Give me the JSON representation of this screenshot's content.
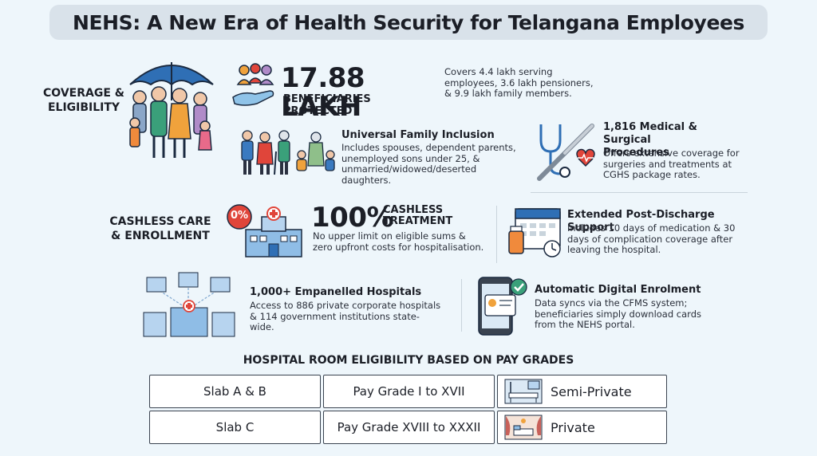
{
  "title": "NEHS: A New Era of Health Security for Telangana Employees",
  "sections": {
    "coverage": "COVERAGE & ELIGIBILITY",
    "cashless": "CASHLESS CARE & ENROLLMENT"
  },
  "beneficiaries": {
    "number": "17.88 LAKH",
    "label": "BENEFICIARIES PROTECTED",
    "desc": "Covers 4.4 lakh serving employees, 3.6 lakh pensioners, & 9.9 lakh family members."
  },
  "family": {
    "heading": "Universal Family Inclusion",
    "desc": "Includes spouses, dependent parents, unemployed sons under 25, & unmarried/widowed/deserted daughters."
  },
  "procedures": {
    "heading": "1,816 Medical & Surgical Procedures",
    "desc": "Offers extensive coverage for surgeries and treatments at CGHS package rates."
  },
  "cashless_card": {
    "number": "100%",
    "label": "CASHLESS TREATMENT",
    "badge": "0%",
    "desc": "No upper limit on eligible sums & zero upfront costs for hospitalisation."
  },
  "post_discharge": {
    "heading": "Extended Post-Discharge Support",
    "desc": "Includes 10 days of medication & 30 days of complication coverage after leaving the hospital."
  },
  "hospitals": {
    "heading": "1,000+ Empanelled Hospitals",
    "desc": "Access to 886 private corporate hospitals & 114 government institutions state-wide."
  },
  "enrolment": {
    "heading": "Automatic Digital Enrolment",
    "desc": "Data syncs via the CFMS system; beneficiaries simply download cards from the NEHS portal."
  },
  "room_table": {
    "title": "HOSPITAL ROOM ELIGIBILITY BASED ON PAY GRADES",
    "rows": [
      {
        "slab": "Slab A & B",
        "grade": "Pay Grade I to XVII",
        "room": "Semi-Private",
        "icon": "hospital-bed-icon"
      },
      {
        "slab": "Slab C",
        "grade": "Pay Grade XVIII to XXXII",
        "room": "Private",
        "icon": "private-room-icon"
      }
    ]
  },
  "colors": {
    "accent_blue": "#2f6fb5",
    "accent_red": "#e0453a",
    "background": "#eef6fb"
  }
}
